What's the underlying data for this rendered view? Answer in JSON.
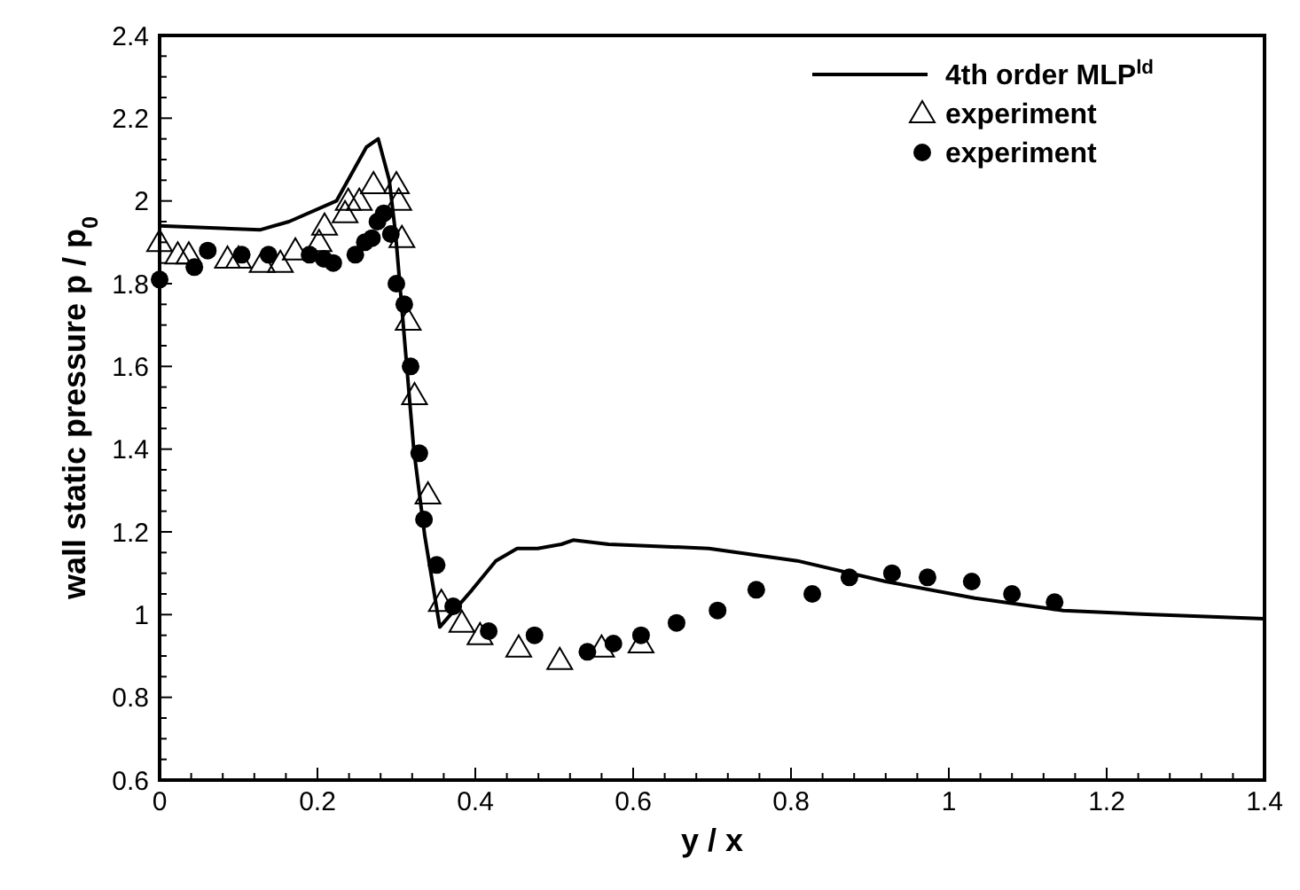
{
  "chart_data": {
    "type": "line",
    "xlabel": "y / x",
    "ylabel": "wall static pressure p / p$_{0}$",
    "xlim": [
      0,
      1.4
    ],
    "ylim": [
      0.6,
      2.4
    ],
    "xticks": [
      0,
      {
        "value": 0.04,
        "label": null
      },
      {
        "value": 0.08,
        "label": null
      },
      {
        "value": 0.12,
        "label": null
      },
      {
        "value": 0.16,
        "label": null
      },
      0.2,
      {
        "value": 0.24,
        "label": null
      },
      {
        "value": 0.28,
        "label": null
      },
      {
        "value": 0.32,
        "label": null
      },
      {
        "value": 0.36,
        "label": null
      },
      0.4,
      {
        "value": 0.44,
        "label": null
      },
      {
        "value": 0.48,
        "label": null
      },
      {
        "value": 0.52,
        "label": null
      },
      {
        "value": 0.56,
        "label": null
      },
      0.6,
      {
        "value": 0.64,
        "label": null
      },
      {
        "value": 0.68,
        "label": null
      },
      {
        "value": 0.72,
        "label": null
      },
      {
        "value": 0.76,
        "label": null
      },
      0.8,
      {
        "value": 0.84,
        "label": null
      },
      {
        "value": 0.88,
        "label": null
      },
      {
        "value": 0.92,
        "label": null
      },
      {
        "value": 0.96,
        "label": null
      },
      1,
      {
        "value": 1.04,
        "label": null
      },
      {
        "value": 1.08,
        "label": null
      },
      {
        "value": 1.12,
        "label": null
      },
      {
        "value": 1.16,
        "label": null
      },
      1.2,
      {
        "value": 1.24,
        "label": null
      },
      {
        "value": 1.28,
        "label": null
      },
      {
        "value": 1.32,
        "label": null
      },
      {
        "value": 1.36,
        "label": null
      },
      1.4
    ],
    "yticks": [
      0.6,
      {
        "value": 0.65,
        "label": null
      },
      {
        "value": 0.7,
        "label": null
      },
      {
        "value": 0.75,
        "label": null
      },
      0.8,
      {
        "value": 0.85,
        "label": null
      },
      {
        "value": 0.9,
        "label": null
      },
      {
        "value": 0.95,
        "label": null
      },
      1,
      {
        "value": 1.05,
        "label": null
      },
      {
        "value": 1.1,
        "label": null
      },
      {
        "value": 1.15,
        "label": null
      },
      1.2,
      {
        "value": 1.25,
        "label": null
      },
      {
        "value": 1.3,
        "label": null
      },
      {
        "value": 1.35,
        "label": null
      },
      1.4,
      {
        "value": 1.45,
        "label": null
      },
      {
        "value": 1.5,
        "label": null
      },
      {
        "value": 1.55,
        "label": null
      },
      1.6,
      {
        "value": 1.65,
        "label": null
      },
      {
        "value": 1.7,
        "label": null
      },
      {
        "value": 1.75,
        "label": null
      },
      1.8,
      {
        "value": 1.85,
        "label": null
      },
      {
        "value": 1.9,
        "label": null
      },
      {
        "value": 1.95,
        "label": null
      },
      2,
      {
        "value": 2.05,
        "label": null
      },
      {
        "value": 2.1,
        "label": null
      },
      {
        "value": 2.15,
        "label": null
      },
      2.2,
      {
        "value": 2.25,
        "label": null
      },
      {
        "value": 2.3,
        "label": null
      },
      {
        "value": 2.35,
        "label": null
      },
      2.4
    ],
    "grid": false,
    "legend": "top right",
    "series": [
      {
        "name": "4th order MLP$^{ld}$",
        "color": "#000000",
        "marker": "none",
        "line_style": "solid",
        "x": [
          0,
          0.127,
          0.164,
          0.224,
          0.262,
          0.277,
          0.291,
          0.299,
          0.307,
          0.322,
          0.336,
          0.355,
          0.396,
          0.426,
          0.453,
          0.479,
          0.509,
          0.524,
          0.569,
          0.696,
          0.808,
          0.92,
          1.033,
          1.145,
          1.258,
          1.4
        ],
        "values": [
          1.94,
          1.93,
          1.95,
          2.0,
          2.13,
          2.15,
          2.05,
          1.92,
          1.74,
          1.4,
          1.19,
          0.97,
          1.06,
          1.13,
          1.16,
          1.16,
          1.17,
          1.18,
          1.17,
          1.16,
          1.13,
          1.08,
          1.04,
          1.01,
          1.0,
          0.99
        ]
      },
      {
        "name": "experiment",
        "type": "scatter",
        "color": "#000000",
        "marker": "triangle",
        "x": [
          0,
          0.023,
          0.037,
          0.086,
          0.1,
          0.13,
          0.153,
          0.172,
          0.202,
          0.209,
          0.235,
          0.239,
          0.253,
          0.271,
          0.3,
          0.303,
          0.307,
          0.315,
          0.323,
          0.34,
          0.357,
          0.383,
          0.406,
          0.455,
          0.507,
          0.56,
          0.61
        ],
        "values": [
          1.9,
          1.87,
          1.87,
          1.86,
          1.86,
          1.85,
          1.85,
          1.88,
          1.9,
          1.94,
          1.97,
          2.0,
          2.0,
          2.04,
          2.04,
          2.0,
          1.91,
          1.71,
          1.53,
          1.29,
          1.03,
          0.98,
          0.95,
          0.92,
          0.89,
          0.92,
          0.93
        ]
      },
      {
        "name": "experiment",
        "type": "scatter",
        "color": "#000000",
        "marker": "circle",
        "x": [
          0,
          0.044,
          0.061,
          0.104,
          0.138,
          0.19,
          0.208,
          0.22,
          0.248,
          0.26,
          0.269,
          0.276,
          0.284,
          0.293,
          0.3,
          0.31,
          0.318,
          0.329,
          0.335,
          0.351,
          0.372,
          0.417,
          0.475,
          0.542,
          0.575,
          0.61,
          0.655,
          0.707,
          0.756,
          0.827,
          0.874,
          0.928,
          0.973,
          1.029,
          1.08,
          1.134
        ],
        "values": [
          1.81,
          1.84,
          1.88,
          1.87,
          1.87,
          1.87,
          1.86,
          1.85,
          1.87,
          1.9,
          1.91,
          1.95,
          1.97,
          1.92,
          1.8,
          1.75,
          1.6,
          1.39,
          1.23,
          1.12,
          1.02,
          0.96,
          0.95,
          0.91,
          0.93,
          0.95,
          0.98,
          1.01,
          1.06,
          1.05,
          1.09,
          1.1,
          1.09,
          1.08,
          1.05,
          1.03
        ]
      }
    ]
  }
}
